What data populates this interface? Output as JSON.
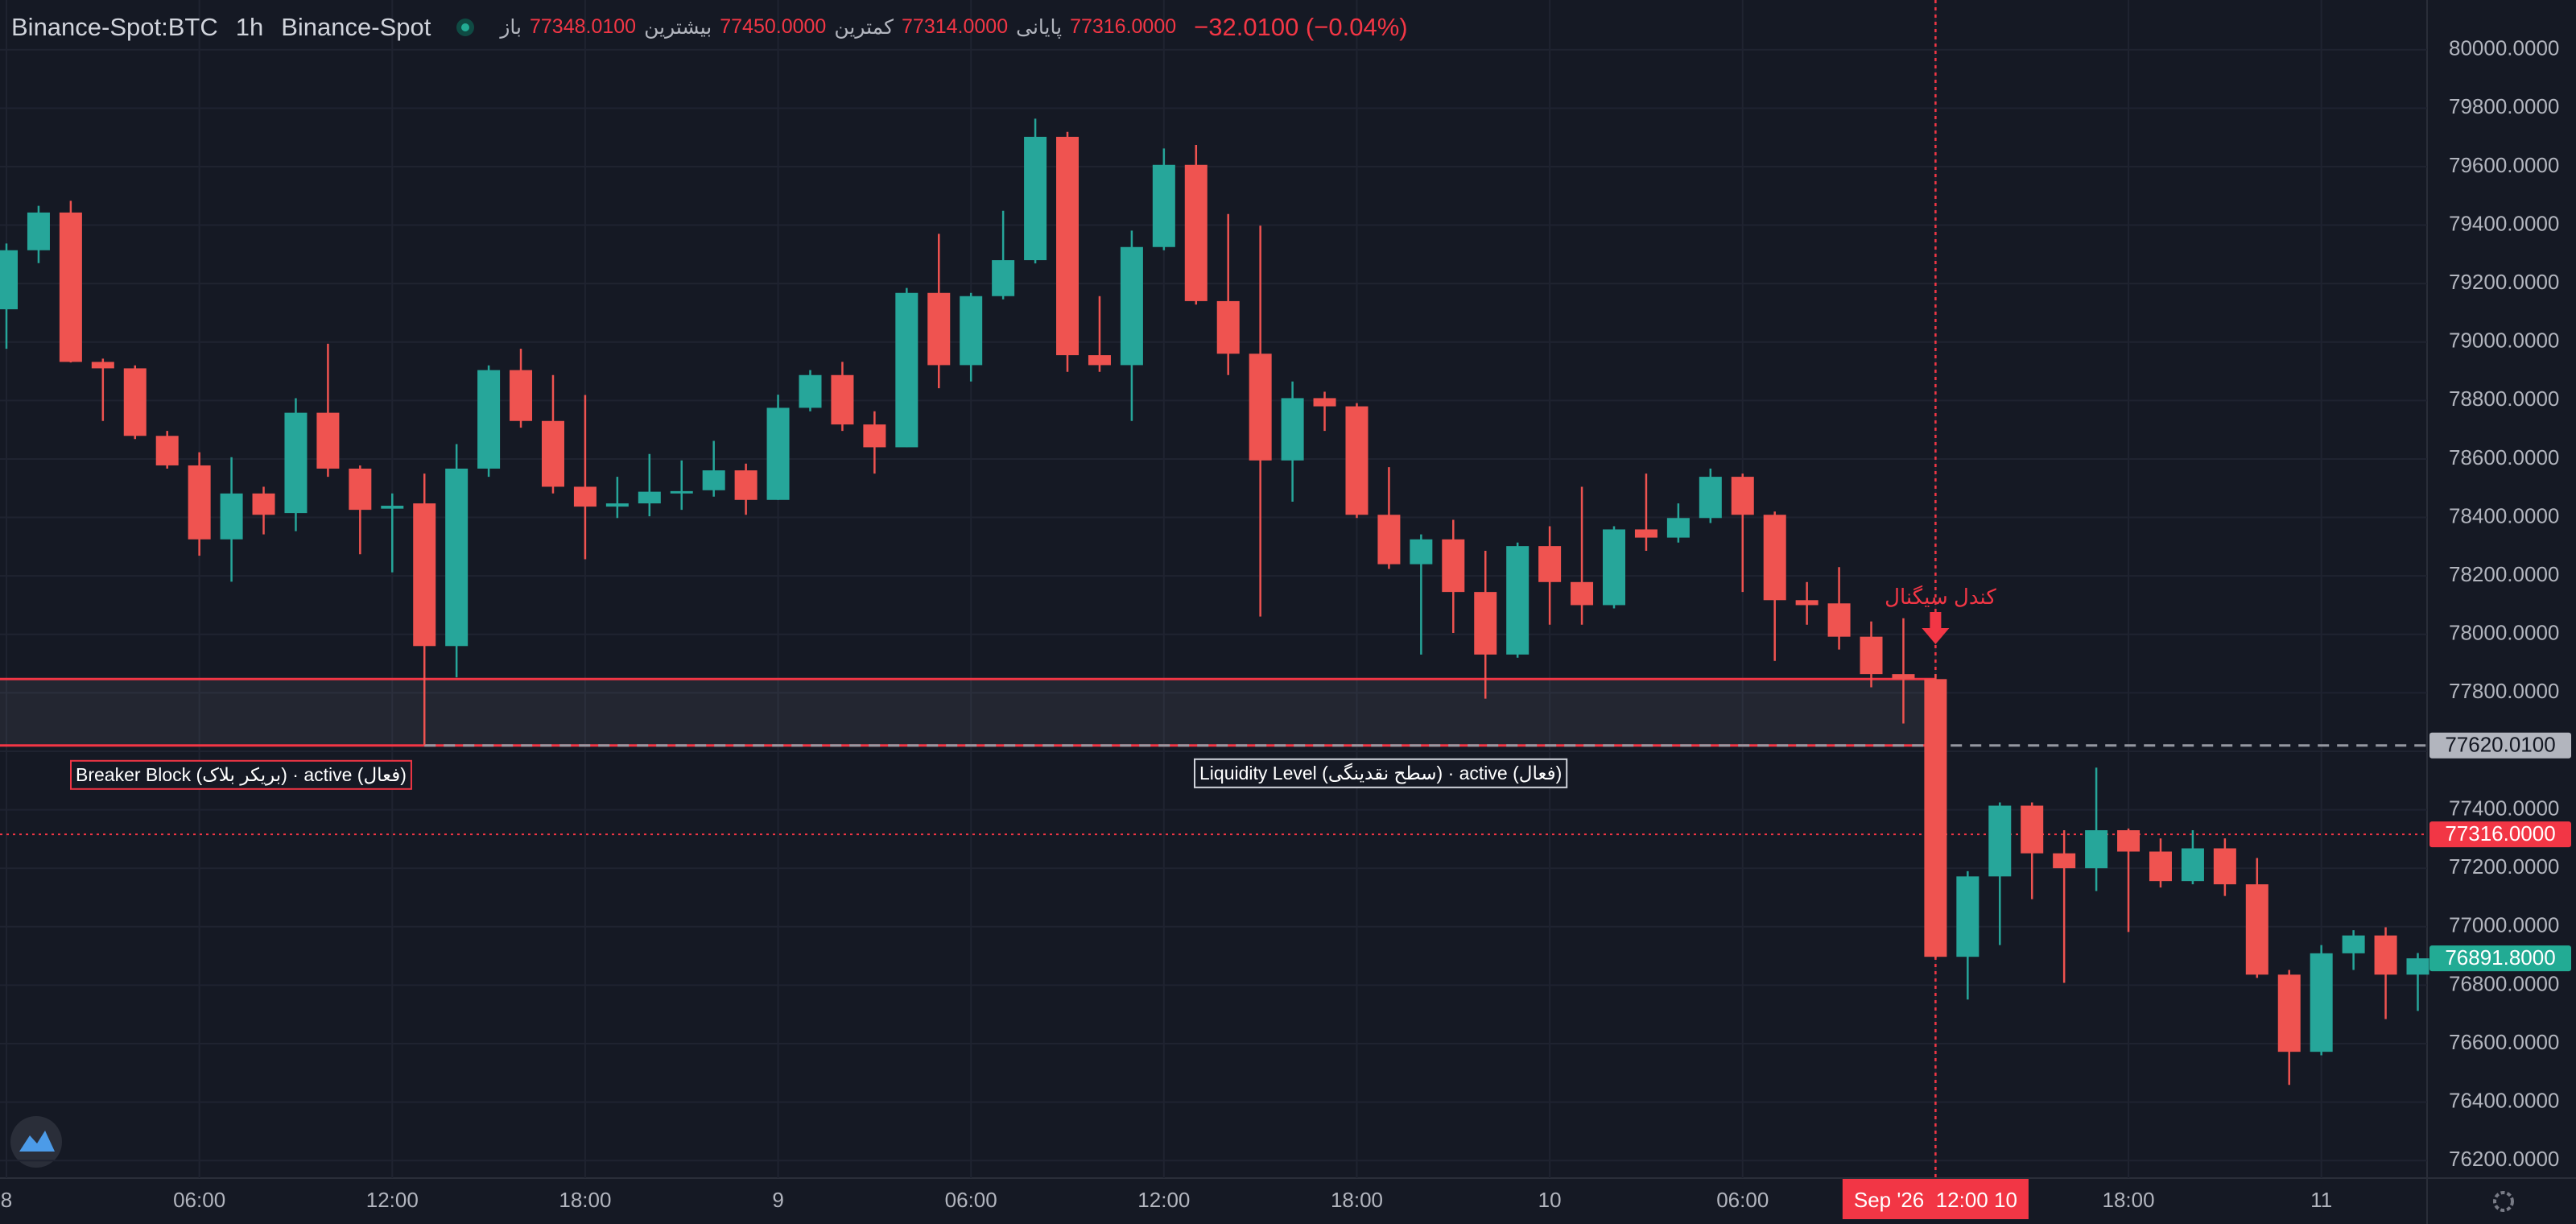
{
  "header": {
    "symbol": "Binance-Spot:BTC",
    "interval": "1h",
    "exchange": "Binance-Spot",
    "ohlc": [
      {
        "label": "باز",
        "value": "77348.0100"
      },
      {
        "label": "بیشترین",
        "value": "77450.0000"
      },
      {
        "label": "کمترین",
        "value": "77314.0000"
      },
      {
        "label": "پایانی",
        "value": "77316.0000"
      }
    ],
    "change": "−32.0100 (−0.04%)"
  },
  "chart_data": {
    "type": "candlestick",
    "categories": [
      "8",
      null,
      null,
      null,
      null,
      null,
      "06:00",
      null,
      null,
      null,
      null,
      null,
      "12:00",
      null,
      null,
      null,
      null,
      null,
      "18:00",
      null,
      null,
      null,
      null,
      null,
      "9",
      null,
      null,
      null,
      null,
      null,
      "06:00",
      null,
      null,
      null,
      null,
      null,
      "12:00",
      null,
      null,
      null,
      null,
      null,
      "18:00",
      null,
      null,
      null,
      null,
      null,
      "10",
      null,
      null,
      null,
      null,
      null,
      "06:00",
      null,
      null,
      null,
      null,
      null,
      "Sep '26  12:00 10",
      null,
      null,
      null,
      null,
      null,
      "18:00",
      null,
      null,
      null,
      null,
      null,
      "11",
      null,
      null,
      null
    ],
    "open": [
      79112,
      79314,
      79443,
      78932,
      78910,
      78679,
      78578,
      78325,
      78482,
      78415,
      78758,
      78567,
      78430,
      78448,
      77960,
      78567,
      78904,
      78730,
      78505,
      78437,
      78448,
      78482,
      78493,
      78561,
      78460,
      78775,
      78887,
      78718,
      78640,
      79168,
      78921,
      79157,
      79280,
      79702,
      78955,
      78921,
      79325,
      79606,
      79140,
      78960,
      78595,
      78808,
      78780,
      78409,
      78240,
      78325,
      78145,
      77931,
      78302,
      78179,
      78100,
      78359,
      78331,
      78398,
      78539,
      78409,
      78117,
      78106,
      77992,
      77864,
      77847,
      76897,
      77172,
      77414,
      77251,
      77200,
      77330,
      77257,
      77156,
      77268,
      77145,
      76836,
      76572,
      76909,
      76970,
      76836
    ],
    "high": [
      79337,
      79466,
      79483,
      78943,
      78920,
      78696,
      78623,
      78606,
      78505,
      78808,
      78994,
      78578,
      78482,
      78550,
      78651,
      78920,
      78977,
      78887,
      78819,
      78539,
      78617,
      78595,
      78662,
      78584,
      78820,
      78904,
      78932,
      78763,
      79185,
      79370,
      79168,
      79449,
      79764,
      79719,
      79157,
      79381,
      79662,
      79674,
      79438,
      79398,
      78865,
      78830,
      78791,
      78572,
      78342,
      78392,
      78286,
      78314,
      78370,
      78505,
      78370,
      78550,
      78448,
      78567,
      78550,
      78420,
      78179,
      78230,
      78044,
      78055,
      77864,
      77190,
      77425,
      77425,
      77330,
      77544,
      77336,
      77302,
      77330,
      77302,
      77235,
      76852,
      76937,
      76988,
      76998,
      76910
    ],
    "low": [
      78977,
      79270,
      78930,
      78730,
      78668,
      78567,
      78269,
      78180,
      78342,
      78353,
      78539,
      78274,
      78212,
      77622,
      77853,
      78539,
      78707,
      78482,
      78257,
      78398,
      78404,
      78426,
      78471,
      78409,
      78460,
      78763,
      78696,
      78550,
      78640,
      78842,
      78865,
      79146,
      79269,
      78898,
      78898,
      78730,
      79314,
      79128,
      78887,
      78061,
      78454,
      78696,
      78398,
      78224,
      77931,
      78005,
      77780,
      77920,
      78033,
      78033,
      78089,
      78286,
      78314,
      78381,
      78145,
      77909,
      78033,
      77948,
      77819,
      77695,
      76891,
      76751,
      76937,
      77094,
      76808,
      77122,
      76982,
      77134,
      77145,
      77105,
      76825,
      76459,
      76560,
      76852,
      76684,
      76712
    ],
    "close": [
      79314,
      79443,
      78932,
      78910,
      78679,
      78578,
      78325,
      78482,
      78409,
      78758,
      78567,
      78426,
      78440,
      77960,
      78567,
      78904,
      78730,
      78505,
      78437,
      78448,
      78488,
      78490,
      78561,
      78460,
      78775,
      78887,
      78718,
      78640,
      79168,
      78921,
      79157,
      79280,
      79702,
      78955,
      78921,
      79325,
      79606,
      79140,
      78960,
      78595,
      78808,
      78780,
      78409,
      78240,
      78325,
      78145,
      77931,
      78302,
      78179,
      78100,
      78359,
      78331,
      78398,
      78539,
      78409,
      78117,
      78100,
      77992,
      77864,
      77847,
      76897,
      77172,
      77414,
      77251,
      77200,
      77330,
      77257,
      77156,
      77268,
      77145,
      76836,
      76572,
      76909,
      76970,
      76836,
      76891.8
    ],
    "up_color": "#26a69a",
    "down_color": "#ef5350",
    "ylim": [
      76140,
      80170
    ],
    "yticks": [
      {
        "value": 76200,
        "label": "76200.0000"
      },
      {
        "value": 76400,
        "label": "76400.0000"
      },
      {
        "value": 76600,
        "label": "76600.0000"
      },
      {
        "value": 76800,
        "label": "76800.0000"
      },
      {
        "value": 77000,
        "label": "77000.0000"
      },
      {
        "value": 77200,
        "label": "77200.0000"
      },
      {
        "value": 77400,
        "label": "77400.0000"
      },
      {
        "value": 77600,
        "label": "77600.0000"
      },
      {
        "value": 77800,
        "label": "77800.0000"
      },
      {
        "value": 78000,
        "label": "78000.0000"
      },
      {
        "value": 78200,
        "label": "78200.0000"
      },
      {
        "value": 78400,
        "label": "78400.0000"
      },
      {
        "value": 78600,
        "label": "78600.0000"
      },
      {
        "value": 78800,
        "label": "78800.0000"
      },
      {
        "value": 79000,
        "label": "79000.0000"
      },
      {
        "value": 79200,
        "label": "79200.0000"
      },
      {
        "value": 79400,
        "label": "79400.0000"
      },
      {
        "value": 79600,
        "label": "79600.0000"
      },
      {
        "value": 79800,
        "label": "79800.0000"
      },
      {
        "value": 80000,
        "label": "80000.0000"
      }
    ],
    "grid": true,
    "zone": {
      "label": "Breaker Block (بریکر بلاک) · active (فعال)",
      "top": 77847,
      "bottom": 77620.01,
      "color": "#f23645"
    },
    "liquidity": {
      "label": "Liquidity Level (سطح نقدینگی) · active (فعال)",
      "value": 77620.01
    },
    "signal": {
      "label": "کندل سیگنال",
      "color": "#f23645"
    },
    "price_labels": [
      {
        "value": 77620.01,
        "label": "77620.0100",
        "color": "#b2b5be",
        "line": "dashed"
      },
      {
        "value": 77316,
        "label": "77316.0000",
        "color": "#f23645",
        "line": "dotted"
      },
      {
        "value": 76891.8,
        "label": "76891.8000",
        "color": "#22ab94"
      }
    ]
  }
}
